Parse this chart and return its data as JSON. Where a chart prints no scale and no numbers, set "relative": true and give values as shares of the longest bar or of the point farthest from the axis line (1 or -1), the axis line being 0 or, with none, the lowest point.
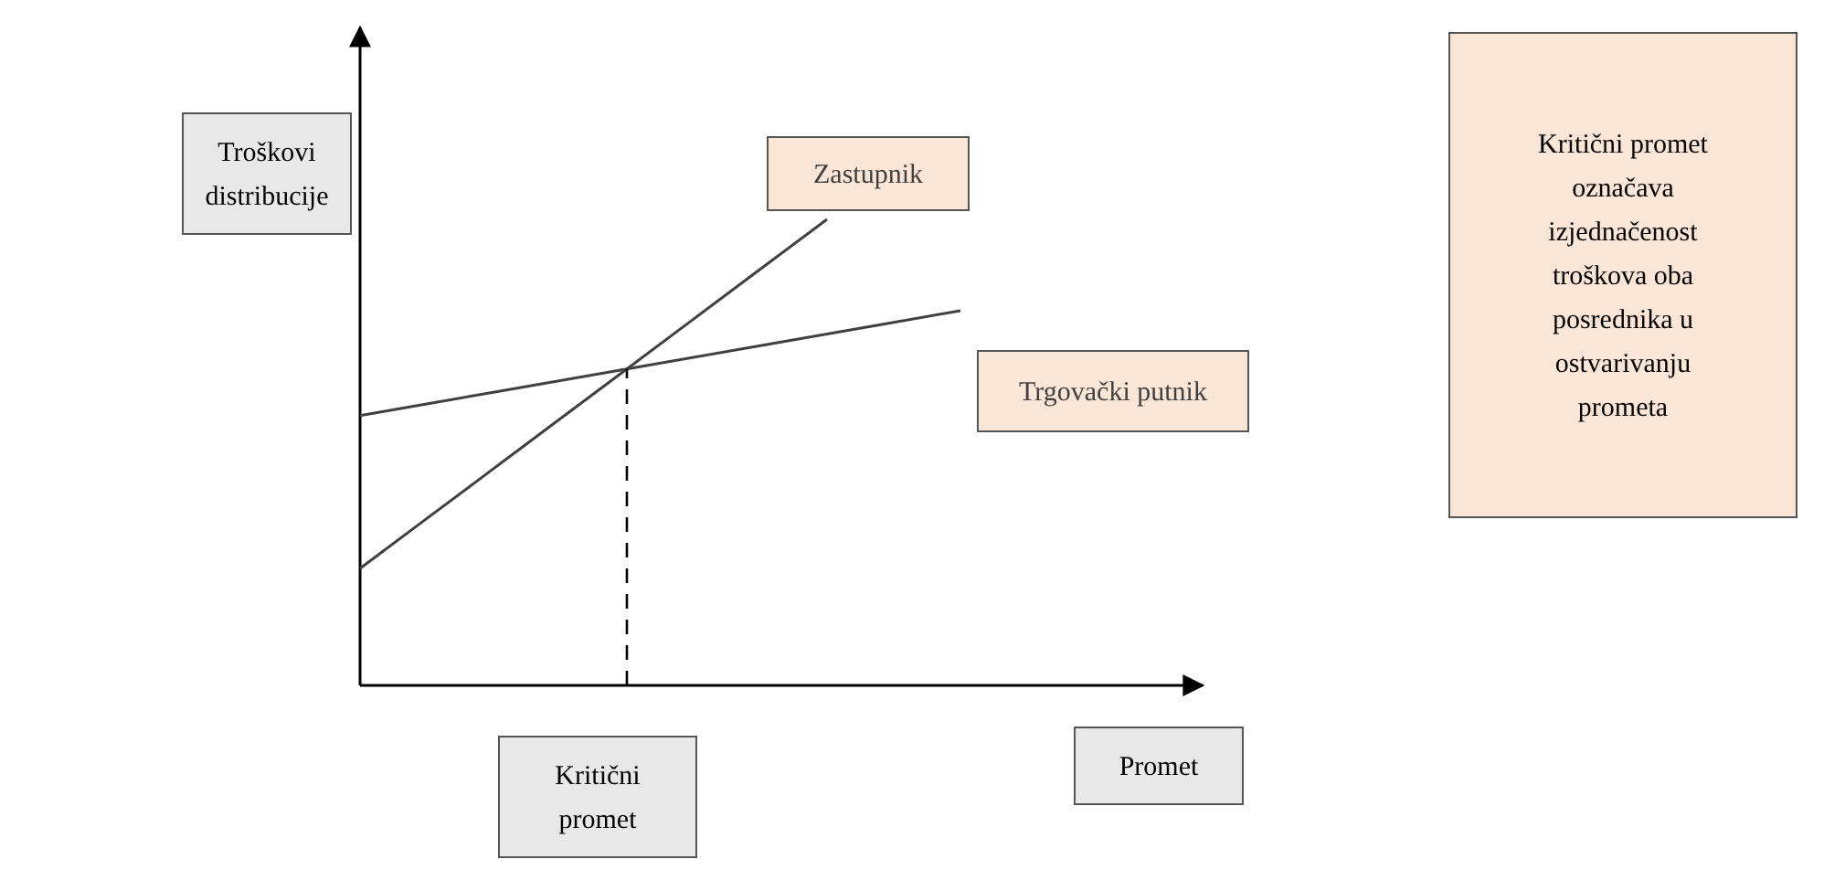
{
  "chart_data": {
    "type": "line",
    "relative": true,
    "categories": [
      null,
      null,
      null,
      null,
      null,
      null,
      null,
      null,
      null,
      null,
      null,
      null,
      null
    ],
    "xlabel": "Promet",
    "ylabel": "Troškovi distribucije",
    "series": [
      {
        "name": "Zastupnik",
        "color": "#404040",
        "values": [
          0.251,
          0.358,
          0.465,
          0.572,
          0.679,
          0.786,
          0.893,
          1.0,
          null,
          null,
          null,
          null,
          null
        ]
      },
      {
        "name": "Trgovački putnik",
        "color": "#404040",
        "values": [
          0.579,
          0.604,
          0.629,
          0.654,
          0.679,
          0.704,
          0.729,
          0.754,
          0.779,
          0.804,
          null,
          null,
          null
        ]
      }
    ],
    "annotations": [
      "Kritični promet",
      "Kritični promet označava izjednačenost troškova oba posrednika u ostvarivanju prometa"
    ],
    "line_style": "solid"
  }
}
